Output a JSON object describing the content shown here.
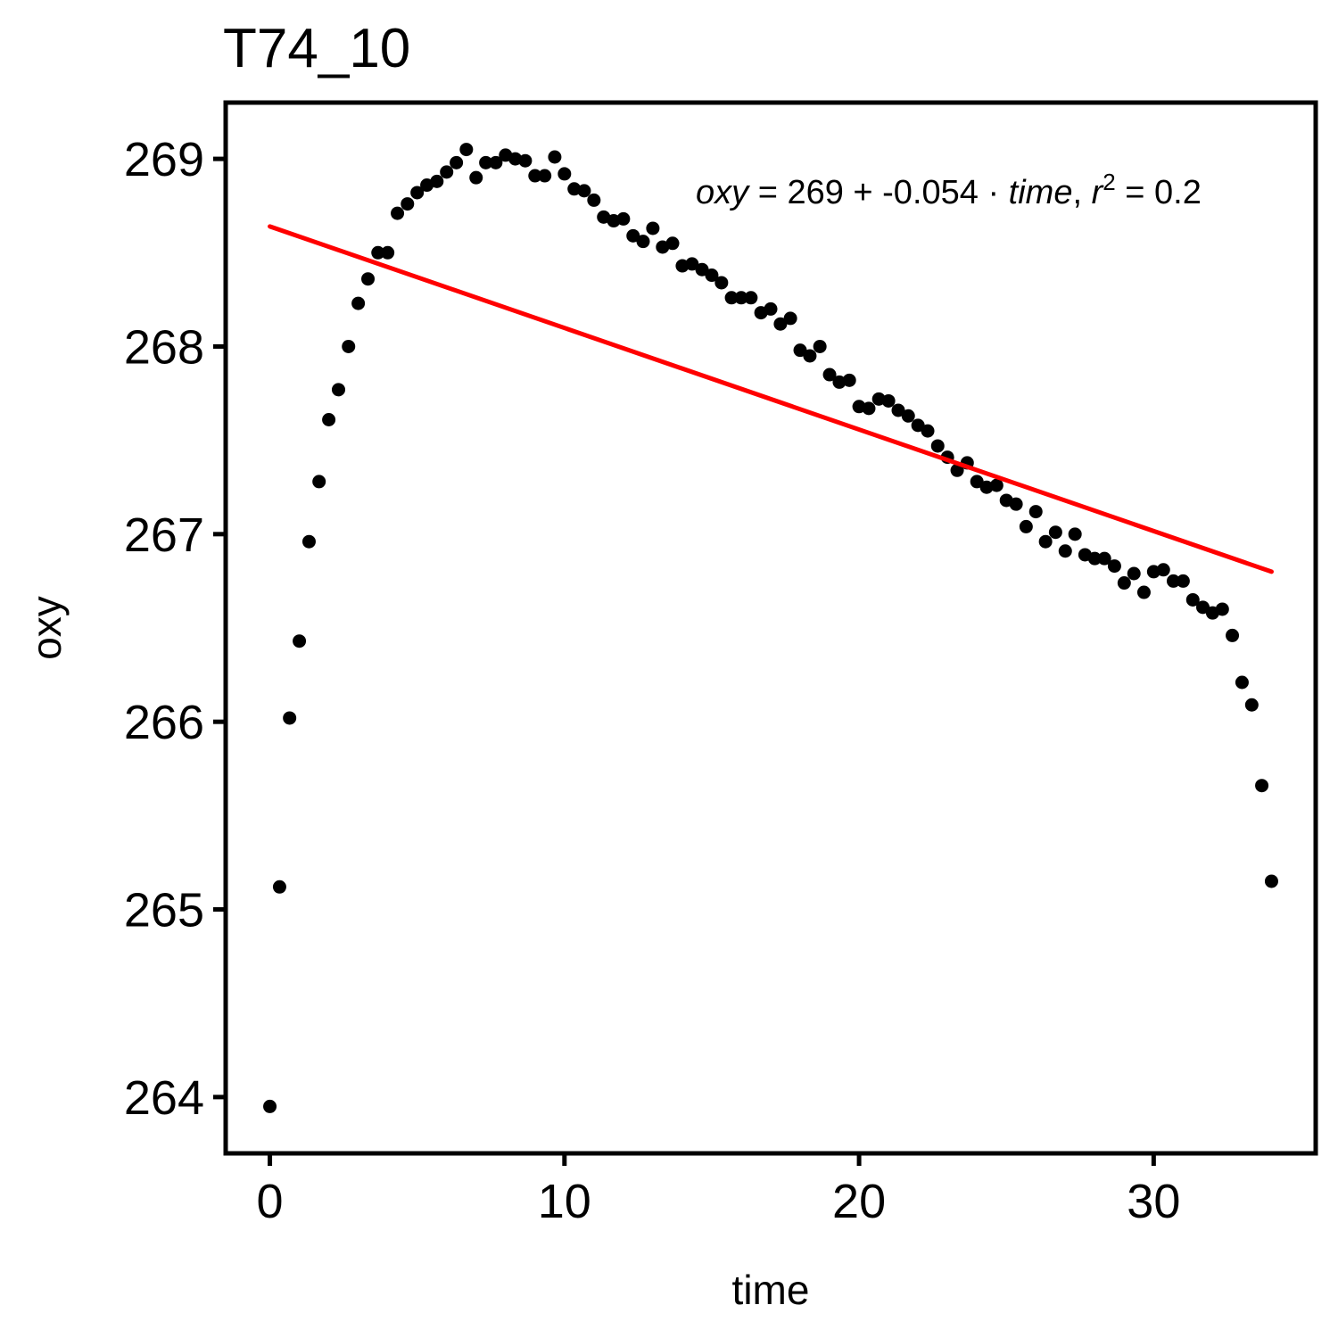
{
  "chart_data": {
    "type": "scatter",
    "title": "T74_10",
    "xlabel": "time",
    "ylabel": "oxy",
    "xlim": [
      -1.5,
      35.5
    ],
    "ylim": [
      263.7,
      269.3
    ],
    "x_ticks": [
      0,
      10,
      20,
      30
    ],
    "x_tick_labels": [
      "0",
      "10",
      "20",
      "30"
    ],
    "y_ticks": [
      264,
      265,
      266,
      267,
      268,
      269
    ],
    "y_tick_labels": [
      "264",
      "265",
      "266",
      "267",
      "268",
      "269"
    ],
    "grid": false,
    "points": [
      [
        0.0,
        263.95
      ],
      [
        0.33,
        265.12
      ],
      [
        0.67,
        266.02
      ],
      [
        1.0,
        266.43
      ],
      [
        1.33,
        266.96
      ],
      [
        1.67,
        267.28
      ],
      [
        2.0,
        267.61
      ],
      [
        2.33,
        267.77
      ],
      [
        2.67,
        268.0
      ],
      [
        3.0,
        268.23
      ],
      [
        3.33,
        268.36
      ],
      [
        3.67,
        268.5
      ],
      [
        4.0,
        268.5
      ],
      [
        4.33,
        268.71
      ],
      [
        4.67,
        268.76
      ],
      [
        5.0,
        268.82
      ],
      [
        5.33,
        268.86
      ],
      [
        5.67,
        268.88
      ],
      [
        6.0,
        268.93
      ],
      [
        6.33,
        268.98
      ],
      [
        6.67,
        269.05
      ],
      [
        7.0,
        268.9
      ],
      [
        7.33,
        268.98
      ],
      [
        7.67,
        268.98
      ],
      [
        8.0,
        269.02
      ],
      [
        8.33,
        269.0
      ],
      [
        8.67,
        268.99
      ],
      [
        9.0,
        268.91
      ],
      [
        9.33,
        268.91
      ],
      [
        9.67,
        269.01
      ],
      [
        10.0,
        268.92
      ],
      [
        10.33,
        268.84
      ],
      [
        10.67,
        268.83
      ],
      [
        11.0,
        268.78
      ],
      [
        11.33,
        268.69
      ],
      [
        11.67,
        268.67
      ],
      [
        12.0,
        268.68
      ],
      [
        12.33,
        268.59
      ],
      [
        12.67,
        268.56
      ],
      [
        13.0,
        268.63
      ],
      [
        13.33,
        268.53
      ],
      [
        13.67,
        268.55
      ],
      [
        14.0,
        268.43
      ],
      [
        14.33,
        268.44
      ],
      [
        14.67,
        268.41
      ],
      [
        15.0,
        268.38
      ],
      [
        15.33,
        268.34
      ],
      [
        15.67,
        268.26
      ],
      [
        16.0,
        268.26
      ],
      [
        16.33,
        268.26
      ],
      [
        16.67,
        268.18
      ],
      [
        17.0,
        268.2
      ],
      [
        17.33,
        268.12
      ],
      [
        17.67,
        268.15
      ],
      [
        18.0,
        267.98
      ],
      [
        18.33,
        267.95
      ],
      [
        18.67,
        268.0
      ],
      [
        19.0,
        267.85
      ],
      [
        19.33,
        267.81
      ],
      [
        19.67,
        267.82
      ],
      [
        20.0,
        267.68
      ],
      [
        20.33,
        267.67
      ],
      [
        20.67,
        267.72
      ],
      [
        21.0,
        267.71
      ],
      [
        21.33,
        267.66
      ],
      [
        21.67,
        267.63
      ],
      [
        22.0,
        267.58
      ],
      [
        22.33,
        267.55
      ],
      [
        22.67,
        267.47
      ],
      [
        23.0,
        267.41
      ],
      [
        23.33,
        267.34
      ],
      [
        23.67,
        267.38
      ],
      [
        24.0,
        267.28
      ],
      [
        24.33,
        267.25
      ],
      [
        24.67,
        267.26
      ],
      [
        25.0,
        267.18
      ],
      [
        25.33,
        267.16
      ],
      [
        25.67,
        267.04
      ],
      [
        26.0,
        267.12
      ],
      [
        26.33,
        266.96
      ],
      [
        26.67,
        267.01
      ],
      [
        27.0,
        266.91
      ],
      [
        27.33,
        267.0
      ],
      [
        27.67,
        266.89
      ],
      [
        28.0,
        266.87
      ],
      [
        28.33,
        266.87
      ],
      [
        28.67,
        266.83
      ],
      [
        29.0,
        266.74
      ],
      [
        29.33,
        266.79
      ],
      [
        29.67,
        266.69
      ],
      [
        30.0,
        266.8
      ],
      [
        30.33,
        266.81
      ],
      [
        30.67,
        266.75
      ],
      [
        31.0,
        266.75
      ],
      [
        31.33,
        266.65
      ],
      [
        31.67,
        266.61
      ],
      [
        32.0,
        266.58
      ],
      [
        32.33,
        266.6
      ],
      [
        32.67,
        266.46
      ],
      [
        33.0,
        266.21
      ],
      [
        33.33,
        266.09
      ],
      [
        33.67,
        265.66
      ],
      [
        34.0,
        265.15
      ]
    ],
    "fit_line": {
      "color": "#ff0000",
      "x": [
        0.0,
        34.0
      ],
      "y": [
        268.64,
        266.8
      ]
    },
    "annotation": {
      "oxy": "oxy",
      "eq": " = 269 + -0.054 · ",
      "time": "time",
      "comma": ",  ",
      "r": "r",
      "sup": "2",
      "rval": " = 0.2"
    },
    "point_color": "#000000"
  }
}
